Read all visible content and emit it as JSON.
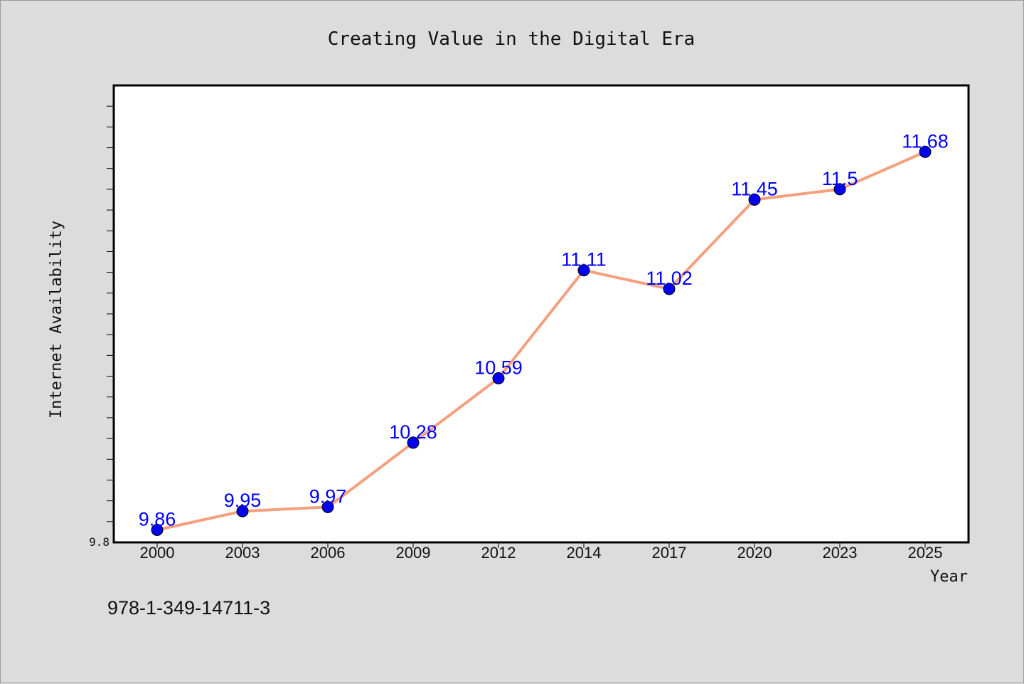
{
  "chart_data": {
    "type": "line",
    "title": "Creating Value in the Digital Era",
    "xlabel": "Year",
    "ylabel": "Internet Availability",
    "categories": [
      "2000",
      "2003",
      "2006",
      "2009",
      "2012",
      "2014",
      "2017",
      "2020",
      "2023",
      "2025"
    ],
    "series": [
      {
        "values": [
          9.86,
          9.95,
          9.97,
          10.28,
          10.59,
          11.11,
          11.02,
          11.45,
          11.5,
          11.68
        ]
      }
    ],
    "data_labels": [
      "9.86",
      "9.95",
      "9.97",
      "10.28",
      "10.59",
      "11.11",
      "11.02",
      "11.45",
      "11.5",
      "11.68"
    ],
    "ylim": [
      9.8,
      12.0
    ],
    "y_tick_labels": [
      "9.8"
    ],
    "y_minor_step": 0.1,
    "grid": false,
    "line_color": "#f4a07e",
    "marker_color": "#0000ee",
    "label_color": "#0000ff"
  },
  "isbn": "978-1-349-14711-3"
}
